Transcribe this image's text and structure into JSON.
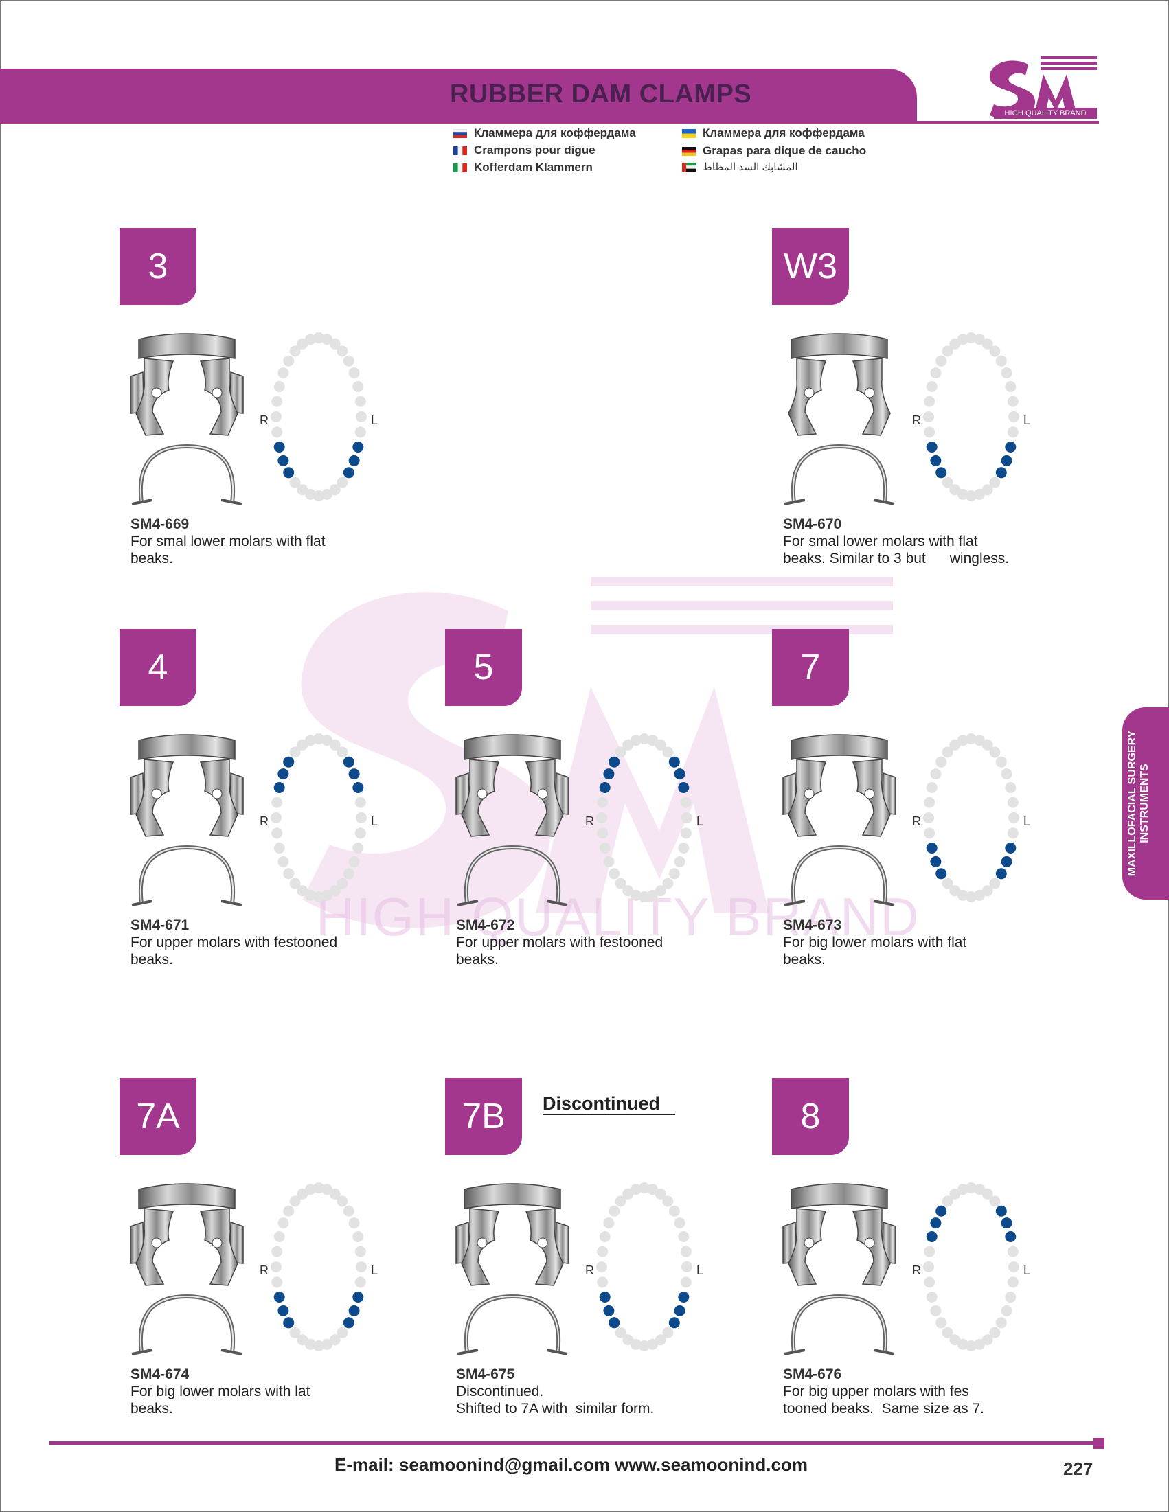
{
  "header": {
    "title": "RUBBER DAM CLAMPS",
    "logo_tagline": "HIGH QUALITY BRAND",
    "translations": [
      {
        "flag": "russia-flag-icon",
        "text": "Кламмера для коффердама"
      },
      {
        "flag": "ukraine-flag-icon",
        "text": "Кламмера для коффердама"
      },
      {
        "flag": "france-flag-icon",
        "text": "Crampons pour digue"
      },
      {
        "flag": "germany-flag-icon",
        "text": "Grapas para dique de caucho"
      },
      {
        "flag": "italy-flag-icon",
        "text": "Kofferdam Klammern"
      },
      {
        "flag": "uae-flag-icon",
        "text": "المشابك السد المطاط"
      }
    ]
  },
  "watermark_text": "HIGH QUALITY BRAND",
  "products": [
    {
      "model": "3",
      "code": "SM4-669",
      "desc": [
        "For smal lower molars with flat",
        "beaks."
      ],
      "arch": "lower"
    },
    {
      "model": "W3",
      "code": "SM4-670",
      "desc": [
        "For smal lower molars with flat",
        "beaks. Similar to 3 but      wingless."
      ],
      "arch": "lower"
    },
    {
      "model": "4",
      "code": "SM4-671",
      "desc": [
        "For upper molars with festooned",
        "beaks."
      ],
      "arch": "upper"
    },
    {
      "model": "5",
      "code": "SM4-672",
      "desc": [
        "For upper molars with festooned",
        "beaks."
      ],
      "arch": "upper"
    },
    {
      "model": "7",
      "code": "SM4-673",
      "desc": [
        "For big lower molars with flat",
        "beaks."
      ],
      "arch": "lower"
    },
    {
      "model": "7A",
      "code": "SM4-674",
      "desc": [
        "For big lower molars with lat",
        "beaks."
      ],
      "arch": "lower"
    },
    {
      "model": "7B",
      "code": "SM4-675",
      "desc": [
        "Discontinued.",
        "Shifted to 7A with  similar form."
      ],
      "arch": "lower"
    },
    {
      "model": "8",
      "code": "SM4-676",
      "desc": [
        "For big upper molars with fes",
        "tooned beaks.  Same size as 7."
      ],
      "arch": "upper"
    }
  ],
  "arch_labels": {
    "right": "R",
    "left": "L"
  },
  "discontinued_label": "Discontinued",
  "side_tab": [
    "MAXILLOFACIAL SURGERY",
    "INSTRUMENTS"
  ],
  "footer": {
    "contact": "E-mail: seamoonind@gmail.com    www.seamoonind.com",
    "page_number": "227"
  },
  "colors": {
    "accent": "#a3378e",
    "tooth_marked": "#0d4a8c",
    "tooth_plain": "#e2e2e2"
  }
}
